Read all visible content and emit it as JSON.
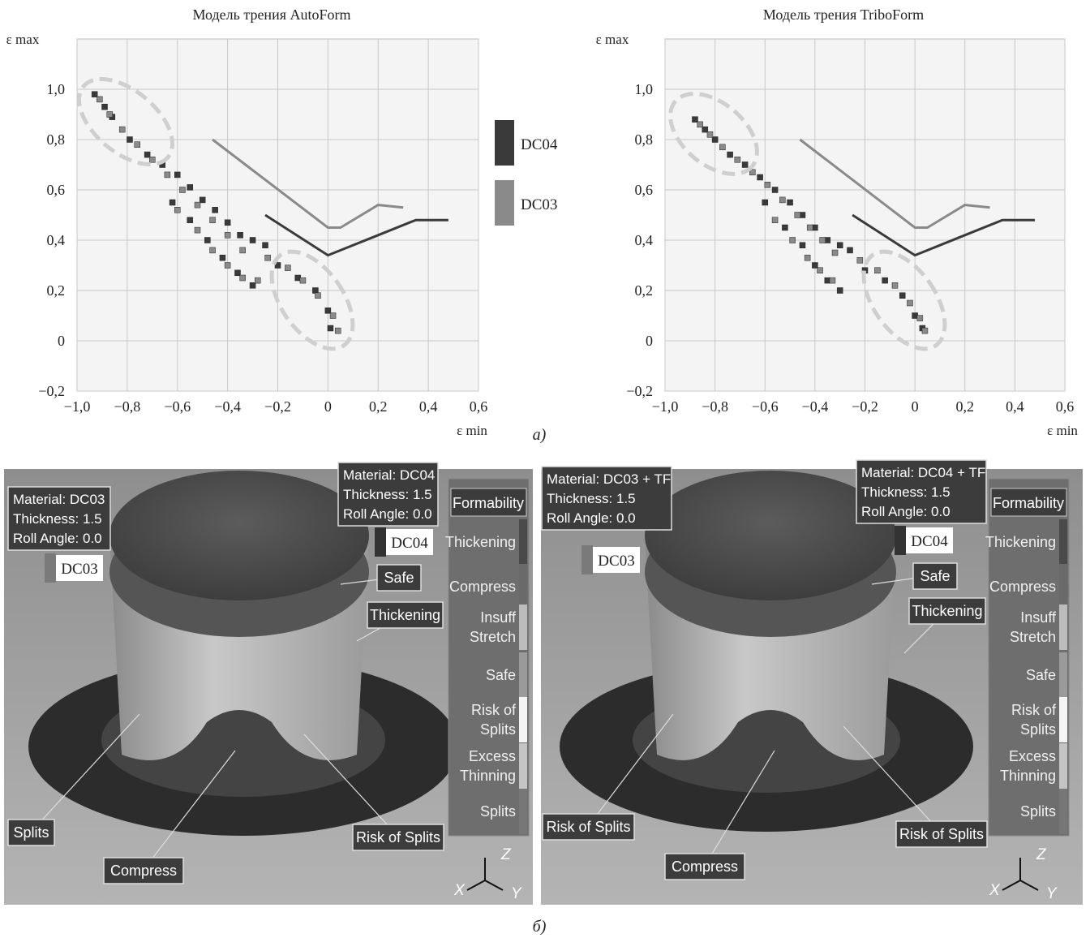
{
  "chart_data": [
    {
      "type": "scatter",
      "title": "Модель трения AutoForm",
      "x_label": "ε min",
      "y_label": "ε max",
      "xlim": [
        -1,
        0.6
      ],
      "ylim": [
        -0.2,
        1.2
      ],
      "xticks": [
        {
          "value": -1,
          "label": "−1,0"
        },
        {
          "value": -0.8,
          "label": "−0,8"
        },
        {
          "value": -0.6,
          "label": "−0,6"
        },
        {
          "value": -0.4,
          "label": "−0,4"
        },
        {
          "value": -0.2,
          "label": "−0,2"
        },
        0,
        {
          "value": 0.2,
          "label": "0,2"
        },
        {
          "value": 0.4,
          "label": "0,4"
        },
        {
          "value": 0.6,
          "label": "0,6"
        }
      ],
      "yticks": [
        {
          "value": -0.2,
          "label": "−0,2"
        },
        0,
        {
          "value": 0.2,
          "label": "0,2"
        },
        {
          "value": 0.4,
          "label": "0,4"
        },
        {
          "value": 0.6,
          "label": "0,6"
        },
        {
          "value": 0.8,
          "label": "0,8"
        },
        {
          "value": 1,
          "label": "1,0"
        }
      ],
      "grid": true,
      "legend": "right",
      "series": [
        {
          "name": "DC04",
          "color": "#3a3a3a",
          "x": [
            -0.93,
            -0.89,
            -0.86,
            -0.79,
            -0.72,
            -0.66,
            -0.6,
            -0.55,
            -0.5,
            -0.45,
            -0.4,
            -0.35,
            -0.3,
            -0.25,
            -0.62,
            -0.55,
            -0.48,
            -0.42,
            -0.36,
            -0.3,
            -0.2,
            -0.12,
            -0.05,
            0,
            0.01
          ],
          "values": [
            0.98,
            0.93,
            0.89,
            0.8,
            0.74,
            0.7,
            0.66,
            0.61,
            0.56,
            0.52,
            0.47,
            0.42,
            0.4,
            0.38,
            0.55,
            0.48,
            0.4,
            0.33,
            0.27,
            0.22,
            0.3,
            0.25,
            0.2,
            0.12,
            0.05
          ],
          "curve_x": [
            -0.25,
            0,
            0.2,
            0.35,
            0.48
          ],
          "curve_y": [
            0.5,
            0.34,
            0.42,
            0.48,
            0.48
          ]
        },
        {
          "name": "DC03",
          "color": "#8a8a8a",
          "x": [
            -0.91,
            -0.87,
            -0.82,
            -0.76,
            -0.7,
            -0.64,
            -0.58,
            -0.52,
            -0.46,
            -0.4,
            -0.34,
            -0.6,
            -0.52,
            -0.46,
            -0.4,
            -0.34,
            -0.28,
            -0.24,
            -0.16,
            -0.1,
            -0.04,
            0.02,
            0.04
          ],
          "values": [
            0.96,
            0.9,
            0.84,
            0.78,
            0.72,
            0.66,
            0.6,
            0.54,
            0.48,
            0.42,
            0.36,
            0.52,
            0.44,
            0.36,
            0.3,
            0.25,
            0.24,
            0.33,
            0.29,
            0.24,
            0.18,
            0.1,
            0.04
          ],
          "curve_x": [
            -0.46,
            0,
            0.05,
            0.2,
            0.3
          ],
          "curve_y": [
            0.8,
            0.45,
            0.45,
            0.54,
            0.53
          ]
        }
      ]
    },
    {
      "type": "scatter",
      "title": "Модель трения TriboForm",
      "x_label": "ε min",
      "y_label": "ε max",
      "xlim": [
        -1,
        0.6
      ],
      "ylim": [
        -0.2,
        1.2
      ],
      "xticks": [
        {
          "value": -1,
          "label": "−1,0"
        },
        {
          "value": -0.8,
          "label": "−0,8"
        },
        {
          "value": -0.6,
          "label": "−0,6"
        },
        {
          "value": -0.4,
          "label": "−0,4"
        },
        {
          "value": -0.2,
          "label": "−0,2"
        },
        0,
        {
          "value": 0.2,
          "label": "0,2"
        },
        {
          "value": 0.4,
          "label": "0,4"
        },
        {
          "value": 0.6,
          "label": "0,6"
        }
      ],
      "yticks": [
        {
          "value": -0.2,
          "label": "−0,2"
        },
        0,
        {
          "value": 0.2,
          "label": "0,2"
        },
        {
          "value": 0.4,
          "label": "0,4"
        },
        {
          "value": 0.6,
          "label": "0,6"
        },
        {
          "value": 0.8,
          "label": "0,8"
        },
        {
          "value": 1,
          "label": "1,0"
        }
      ],
      "grid": true,
      "series": [
        {
          "color": "#3a3a3a",
          "x": [
            -0.88,
            -0.84,
            -0.8,
            -0.74,
            -0.68,
            -0.62,
            -0.56,
            -0.5,
            -0.45,
            -0.4,
            -0.35,
            -0.3,
            -0.26,
            -0.6,
            -0.52,
            -0.45,
            -0.4,
            -0.35,
            -0.3,
            -0.2,
            -0.12,
            -0.05,
            0,
            0.03
          ],
          "values": [
            0.88,
            0.84,
            0.8,
            0.74,
            0.7,
            0.65,
            0.6,
            0.55,
            0.5,
            0.45,
            0.4,
            0.38,
            0.36,
            0.55,
            0.45,
            0.38,
            0.3,
            0.24,
            0.2,
            0.28,
            0.24,
            0.18,
            0.1,
            0.05
          ],
          "curve_x": [
            -0.25,
            0,
            0.2,
            0.35,
            0.48
          ],
          "curve_y": [
            0.5,
            0.34,
            0.42,
            0.48,
            0.48
          ]
        },
        {
          "color": "#8a8a8a",
          "x": [
            -0.86,
            -0.82,
            -0.77,
            -0.71,
            -0.65,
            -0.59,
            -0.53,
            -0.47,
            -0.42,
            -0.37,
            -0.32,
            -0.56,
            -0.49,
            -0.43,
            -0.38,
            -0.33,
            -0.22,
            -0.15,
            -0.08,
            -0.02,
            0.02,
            0.04
          ],
          "values": [
            0.86,
            0.82,
            0.77,
            0.72,
            0.67,
            0.62,
            0.56,
            0.5,
            0.45,
            0.4,
            0.35,
            0.48,
            0.4,
            0.33,
            0.28,
            0.24,
            0.32,
            0.28,
            0.22,
            0.15,
            0.09,
            0.04
          ],
          "curve_x": [
            -0.46,
            0,
            0.05,
            0.2,
            0.3
          ],
          "curve_y": [
            0.8,
            0.45,
            0.45,
            0.54,
            0.53
          ]
        }
      ]
    }
  ],
  "captions": [
    "а)",
    "б)"
  ],
  "panels": [
    {
      "info_boxes": [
        [
          "Material: DC03",
          "Thickness: 1.5",
          "Roll Angle: 0.0"
        ],
        [
          "Material: DC04",
          "Thickness: 1.5",
          "Roll Angle: 0.0"
        ]
      ],
      "tags": [
        "DC03",
        "DC04"
      ],
      "callouts": [
        "Safe",
        "Thickening",
        "Splits",
        "Compress",
        "Risk of Splits"
      ],
      "legend_title": "Formability",
      "legend_items": [
        [
          "Thickening"
        ],
        [
          "Compress"
        ],
        [
          "Insuff",
          "Stretch"
        ],
        [
          "Safe"
        ],
        [
          "Risk of",
          "Splits"
        ],
        [
          "Excess",
          "Thinning"
        ],
        [
          "Splits"
        ]
      ],
      "axes": [
        "Z",
        "X",
        "Y"
      ]
    },
    {
      "info_boxes": [
        [
          "Material: DC03 + TF",
          "Thickness: 1.5",
          "Roll Angle: 0.0"
        ],
        [
          "Material: DC04 + TF",
          "Thickness: 1.5",
          "Roll Angle: 0.0"
        ]
      ],
      "tags": [
        "DC03",
        "DC04"
      ],
      "callouts": [
        "Safe",
        "Thickening",
        "Risk of Splits",
        "Compress",
        "Risk of Splits"
      ],
      "legend_title": "Formability",
      "legend_items": [
        [
          "Thickening"
        ],
        [
          "Compress"
        ],
        [
          "Insuff",
          "Stretch"
        ],
        [
          "Safe"
        ],
        [
          "Risk of",
          "Splits"
        ],
        [
          "Excess",
          "Thinning"
        ],
        [
          "Splits"
        ]
      ],
      "axes": [
        "Z",
        "X",
        "Y"
      ]
    }
  ]
}
